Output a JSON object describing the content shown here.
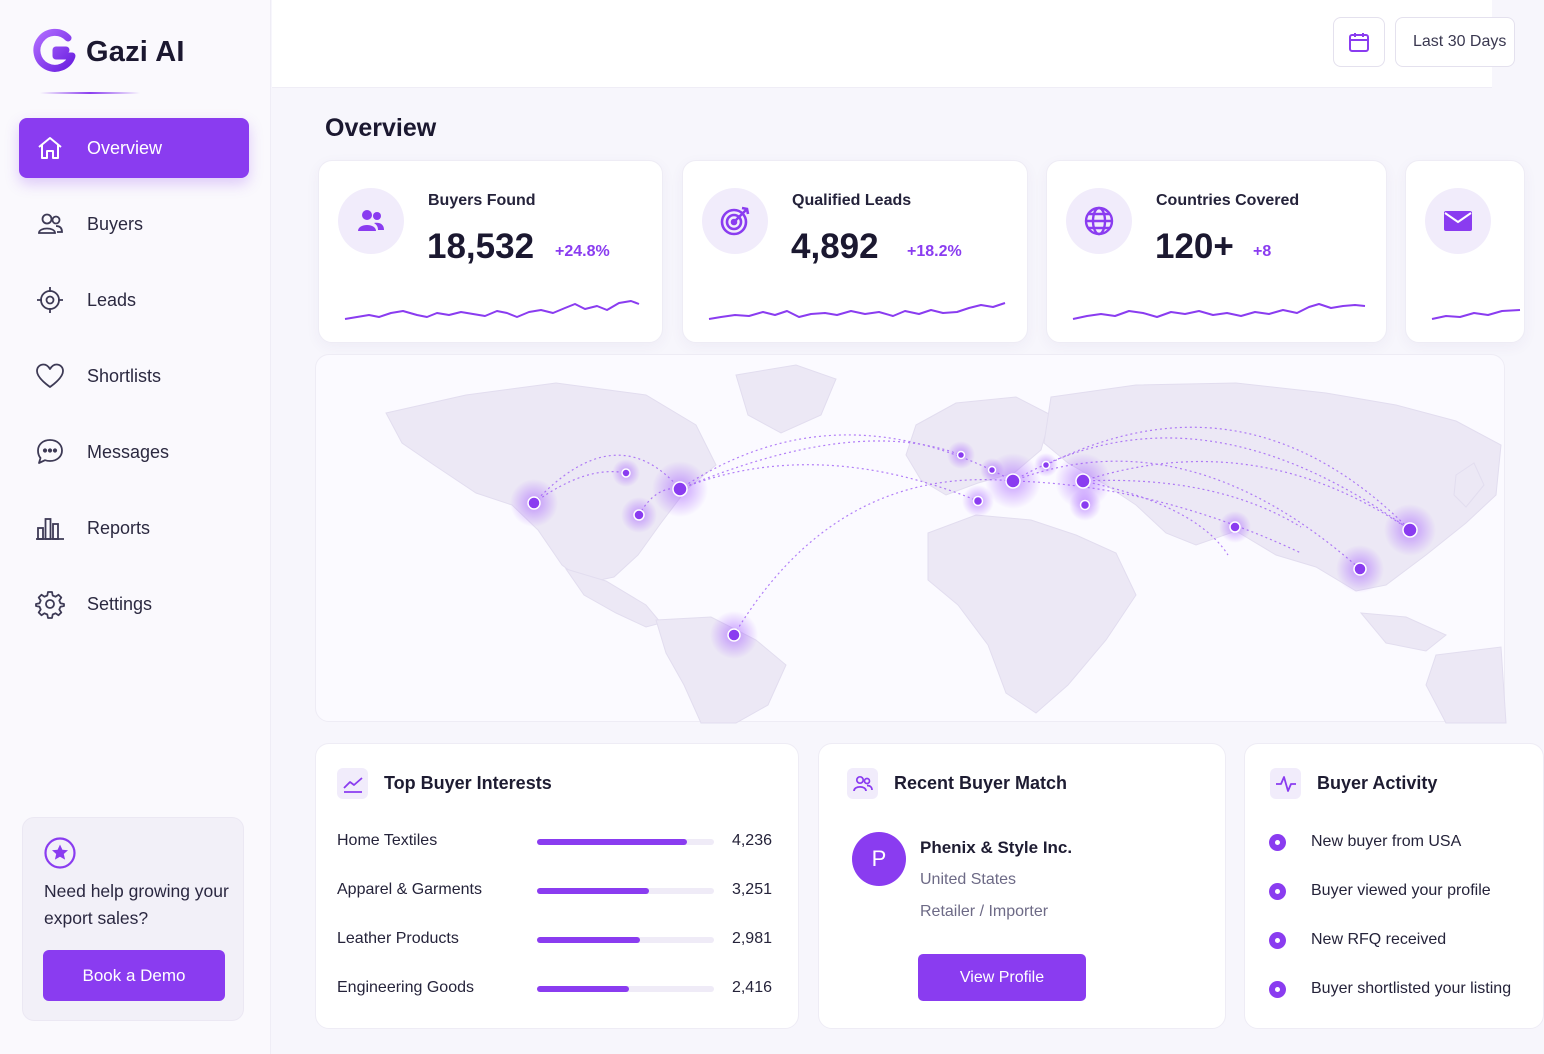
{
  "app": {
    "name": "Gazi AI"
  },
  "sidebar": {
    "items": [
      {
        "label": "Overview",
        "icon": "home-icon",
        "active": true
      },
      {
        "label": "Buyers",
        "icon": "users-icon",
        "active": false
      },
      {
        "label": "Leads",
        "icon": "crosshair-icon",
        "active": false
      },
      {
        "label": "Shortlists",
        "icon": "heart-icon",
        "active": false
      },
      {
        "label": "Messages",
        "icon": "chat-icon",
        "active": false
      },
      {
        "label": "Reports",
        "icon": "bar-chart-icon",
        "active": false
      },
      {
        "label": "Settings",
        "icon": "gear-icon",
        "active": false
      }
    ],
    "help": {
      "text": "Need help growing your export sales?",
      "button": "Book a Demo",
      "icon": "star-circle-icon"
    }
  },
  "topbar": {
    "calendar_icon": "calendar-icon",
    "date_range": "Last 30 Days"
  },
  "page": {
    "title": "Overview"
  },
  "stats": [
    {
      "label": "Buyers Found",
      "value": "18,532",
      "delta": "+24.8%",
      "icon": "users-icon"
    },
    {
      "label": "Qualified Leads",
      "value": "4,892",
      "delta": "+18.2%",
      "icon": "target-icon"
    },
    {
      "label": "Countries Covered",
      "value": "120+",
      "delta": "+8",
      "icon": "globe-icon"
    },
    {
      "label": "",
      "value": "",
      "delta": "",
      "icon": "mail-icon"
    }
  ],
  "top_buyer_interests": {
    "title": "Top Buyer Interests",
    "icon": "trend-chart-icon",
    "rows": [
      {
        "name": "Home Textiles",
        "value": "4,236",
        "fraction": 0.85
      },
      {
        "name": "Apparel & Garments",
        "value": "3,251",
        "fraction": 0.63
      },
      {
        "name": "Leather Products",
        "value": "2,981",
        "fraction": 0.58
      },
      {
        "name": "Engineering Goods",
        "value": "2,416",
        "fraction": 0.52
      }
    ]
  },
  "recent_buyer_match": {
    "title": "Recent Buyer Match",
    "icon": "users-icon",
    "avatar_letter": "P",
    "name": "Phenix & Style Inc.",
    "country": "United States",
    "type": "Retailer / Importer",
    "button": "View Profile"
  },
  "buyer_activity": {
    "title": "Buyer Activity",
    "icon": "pulse-icon",
    "items": [
      "New buyer from USA",
      "Buyer viewed your profile",
      "New RFQ received",
      "Buyer shortlisted your listing"
    ]
  },
  "colors": {
    "accent": "#8a3cf0",
    "accent_light": "#f1ecfb",
    "text": "#1b1830"
  }
}
